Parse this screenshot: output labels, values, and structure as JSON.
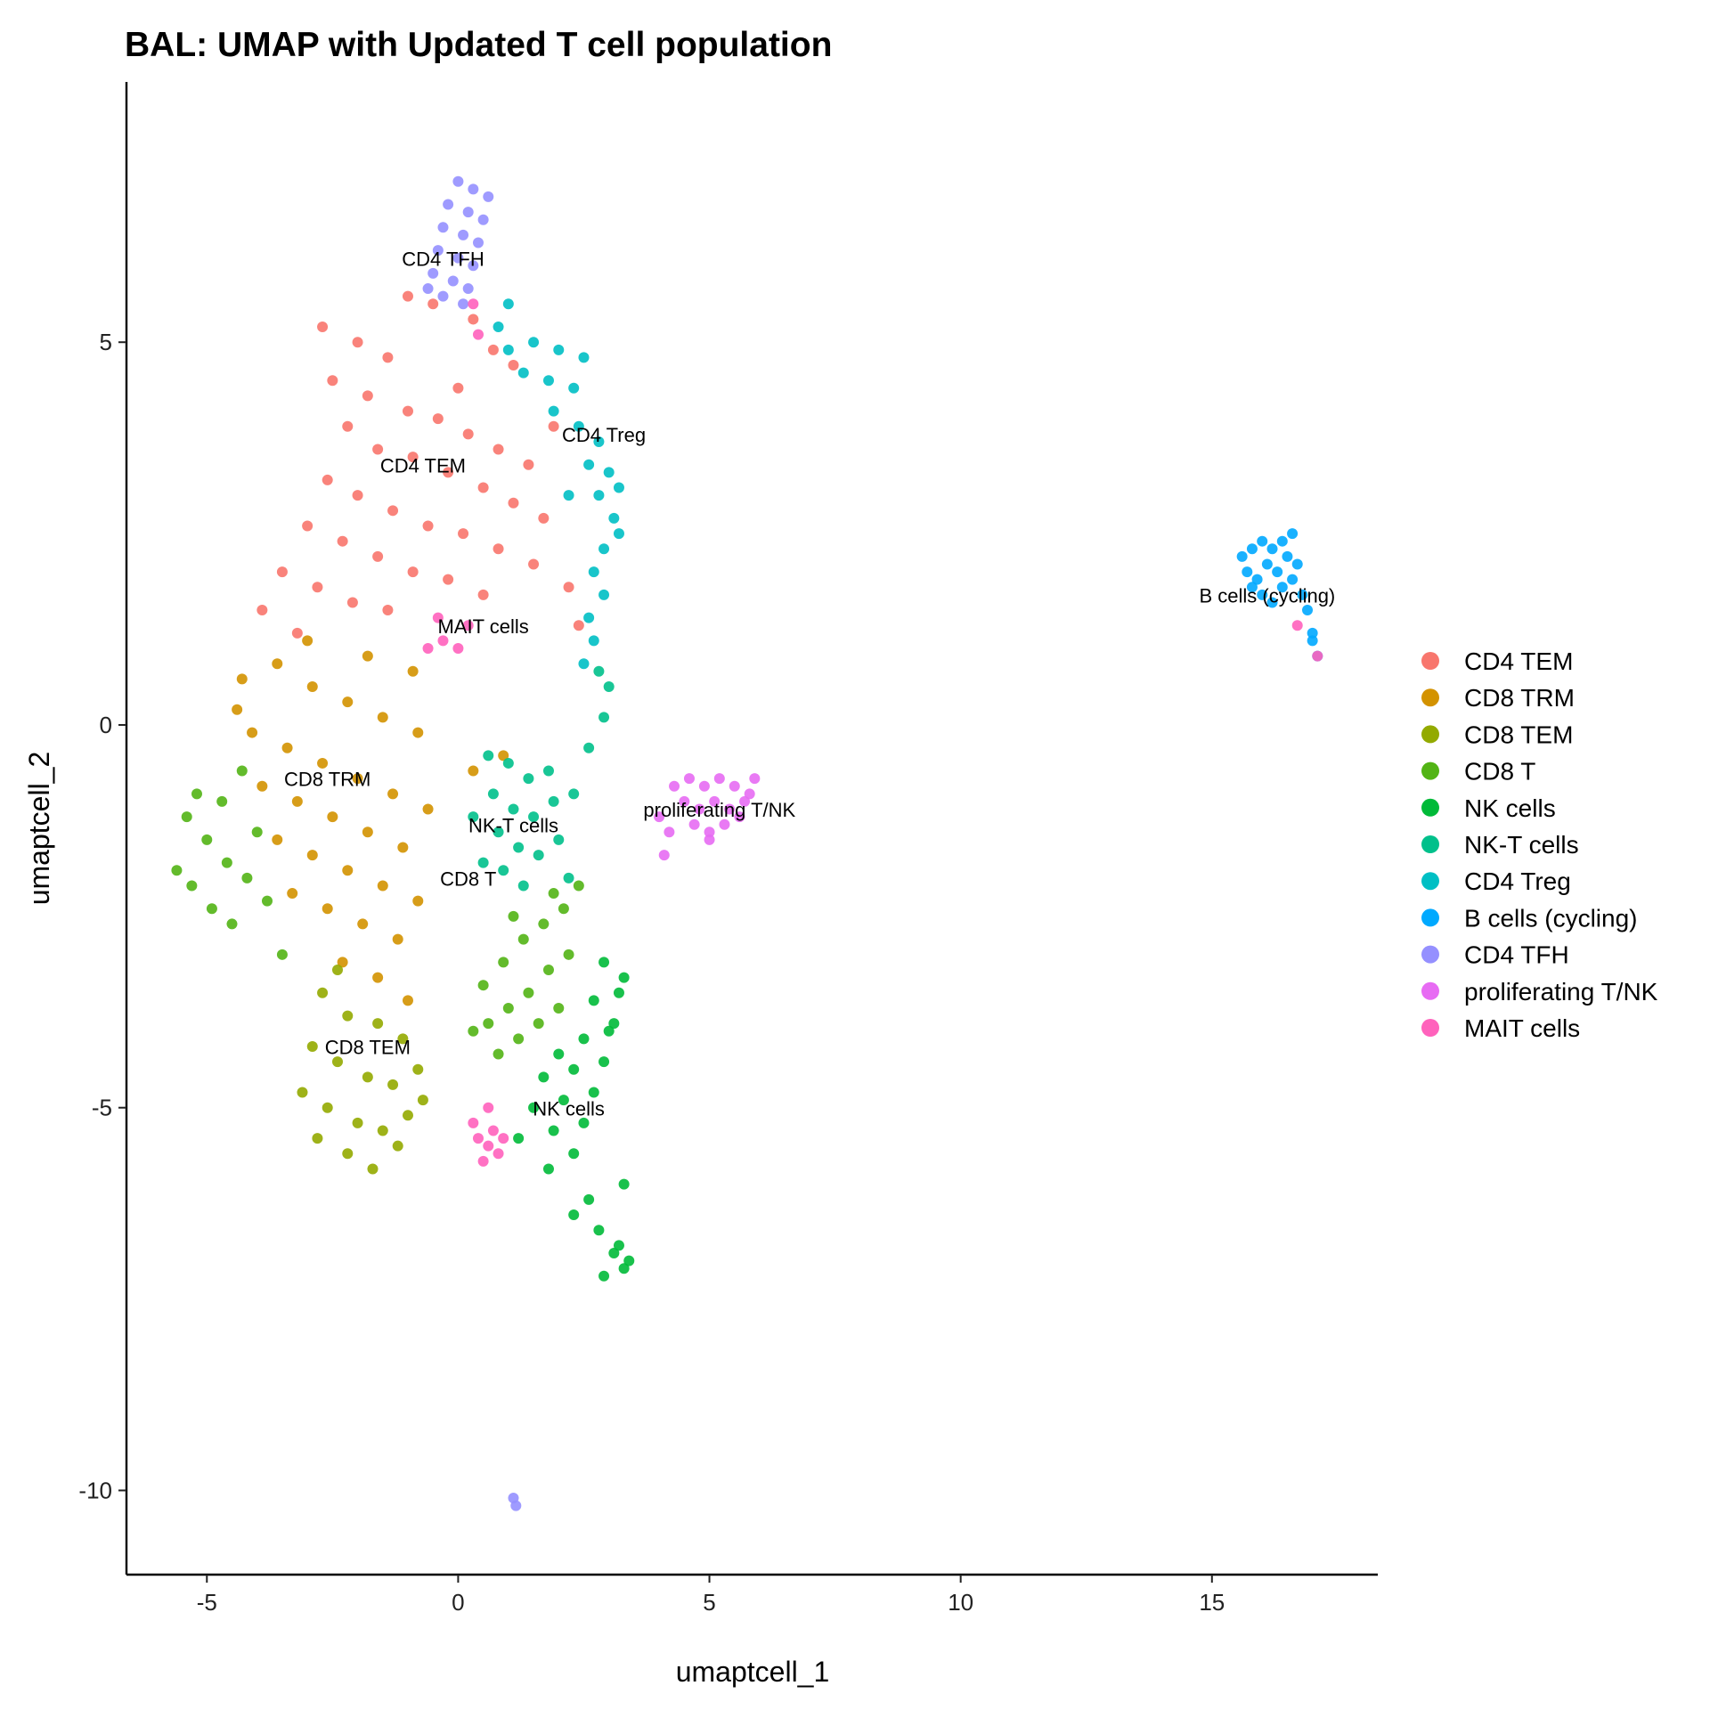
{
  "chart_data": {
    "type": "scatter",
    "title": "BAL: UMAP with Updated T cell population",
    "xlabel": "umaptcell_1",
    "ylabel": "umaptcell_2",
    "xlim": [
      -6.6,
      18.3
    ],
    "ylim": [
      -11.1,
      8.4
    ],
    "x_ticks": [
      -5,
      0,
      5,
      10,
      15
    ],
    "y_ticks": [
      -10,
      -5,
      0,
      5
    ],
    "grid": false,
    "legend_position": "right",
    "series": [
      {
        "name": "CD4 TEM",
        "color": "#F8766D",
        "label": "CD4 TEM",
        "label_pos": [
          -0.7,
          3.3
        ],
        "points": [
          [
            -2.7,
            5.2
          ],
          [
            -2.0,
            5.0
          ],
          [
            -1.4,
            4.8
          ],
          [
            -2.5,
            4.5
          ],
          [
            -1.8,
            4.3
          ],
          [
            -1.0,
            4.1
          ],
          [
            -0.4,
            4.0
          ],
          [
            0.2,
            3.8
          ],
          [
            0.8,
            3.6
          ],
          [
            1.4,
            3.4
          ],
          [
            -2.2,
            3.9
          ],
          [
            -1.6,
            3.6
          ],
          [
            -0.9,
            3.5
          ],
          [
            -0.2,
            3.3
          ],
          [
            0.5,
            3.1
          ],
          [
            1.1,
            2.9
          ],
          [
            1.7,
            2.7
          ],
          [
            -2.6,
            3.2
          ],
          [
            -2.0,
            3.0
          ],
          [
            -1.3,
            2.8
          ],
          [
            -0.6,
            2.6
          ],
          [
            0.1,
            2.5
          ],
          [
            0.8,
            2.3
          ],
          [
            1.5,
            2.1
          ],
          [
            -3.0,
            2.6
          ],
          [
            -2.3,
            2.4
          ],
          [
            -1.6,
            2.2
          ],
          [
            -0.9,
            2.0
          ],
          [
            -0.2,
            1.9
          ],
          [
            0.5,
            1.7
          ],
          [
            -3.5,
            2.0
          ],
          [
            -2.8,
            1.8
          ],
          [
            -2.1,
            1.6
          ],
          [
            -1.4,
            1.5
          ],
          [
            -3.9,
            1.5
          ],
          [
            -3.2,
            1.2
          ],
          [
            0.3,
            5.3
          ],
          [
            -0.5,
            5.5
          ],
          [
            1.1,
            4.7
          ],
          [
            1.9,
            3.9
          ],
          [
            2.2,
            1.8
          ],
          [
            2.4,
            1.3
          ],
          [
            -1.0,
            5.6
          ],
          [
            0.0,
            4.4
          ],
          [
            0.7,
            4.9
          ]
        ]
      },
      {
        "name": "CD8 TRM",
        "color": "#D39200",
        "label": "CD8 TRM",
        "label_pos": [
          -2.6,
          -0.8
        ],
        "points": [
          [
            -4.3,
            0.6
          ],
          [
            -3.6,
            0.8
          ],
          [
            -2.9,
            0.5
          ],
          [
            -2.2,
            0.3
          ],
          [
            -1.5,
            0.1
          ],
          [
            -0.8,
            -0.1
          ],
          [
            -4.1,
            -0.1
          ],
          [
            -3.4,
            -0.3
          ],
          [
            -2.7,
            -0.5
          ],
          [
            -2.0,
            -0.7
          ],
          [
            -1.3,
            -0.9
          ],
          [
            -0.6,
            -1.1
          ],
          [
            -3.9,
            -0.8
          ],
          [
            -3.2,
            -1.0
          ],
          [
            -2.5,
            -1.2
          ],
          [
            -1.8,
            -1.4
          ],
          [
            -1.1,
            -1.6
          ],
          [
            -3.6,
            -1.5
          ],
          [
            -2.9,
            -1.7
          ],
          [
            -2.2,
            -1.9
          ],
          [
            -1.5,
            -2.1
          ],
          [
            -0.8,
            -2.3
          ],
          [
            -3.3,
            -2.2
          ],
          [
            -2.6,
            -2.4
          ],
          [
            -1.9,
            -2.6
          ],
          [
            -1.2,
            -2.8
          ],
          [
            -2.3,
            -3.1
          ],
          [
            -1.6,
            -3.3
          ],
          [
            -1.0,
            -3.6
          ],
          [
            -4.4,
            0.2
          ],
          [
            -3.0,
            1.1
          ],
          [
            -1.8,
            0.9
          ],
          [
            -0.9,
            0.7
          ],
          [
            0.3,
            -0.6
          ],
          [
            0.9,
            -0.4
          ]
        ]
      },
      {
        "name": "CD8 TEM",
        "color": "#93AA00",
        "label": "CD8 TEM",
        "label_pos": [
          -1.8,
          -4.3
        ],
        "points": [
          [
            -2.7,
            -3.5
          ],
          [
            -2.2,
            -3.8
          ],
          [
            -1.6,
            -3.9
          ],
          [
            -1.1,
            -4.1
          ],
          [
            -2.9,
            -4.2
          ],
          [
            -2.4,
            -4.4
          ],
          [
            -1.8,
            -4.6
          ],
          [
            -1.3,
            -4.7
          ],
          [
            -0.8,
            -4.5
          ],
          [
            -3.1,
            -4.8
          ],
          [
            -2.6,
            -5.0
          ],
          [
            -2.0,
            -5.2
          ],
          [
            -1.5,
            -5.3
          ],
          [
            -1.0,
            -5.1
          ],
          [
            -2.8,
            -5.4
          ],
          [
            -2.2,
            -5.6
          ],
          [
            -1.7,
            -5.8
          ],
          [
            -1.2,
            -5.5
          ],
          [
            -0.7,
            -4.9
          ],
          [
            -2.4,
            -3.2
          ]
        ]
      },
      {
        "name": "CD8 T",
        "color": "#52B415",
        "label": "CD8 T",
        "label_pos": [
          0.2,
          -2.1
        ],
        "points": [
          [
            -5.4,
            -1.2
          ],
          [
            -5.0,
            -1.5
          ],
          [
            -4.6,
            -1.8
          ],
          [
            -4.2,
            -2.0
          ],
          [
            -5.3,
            -2.1
          ],
          [
            -4.9,
            -2.4
          ],
          [
            -4.5,
            -2.6
          ],
          [
            -5.2,
            -0.9
          ],
          [
            -4.7,
            -1.0
          ],
          [
            -4.0,
            -1.4
          ],
          [
            -3.8,
            -2.3
          ],
          [
            -4.3,
            -0.6
          ],
          [
            0.5,
            -3.4
          ],
          [
            0.9,
            -3.1
          ],
          [
            1.3,
            -2.8
          ],
          [
            1.7,
            -2.6
          ],
          [
            2.1,
            -2.4
          ],
          [
            0.6,
            -3.9
          ],
          [
            1.0,
            -3.7
          ],
          [
            1.4,
            -3.5
          ],
          [
            1.8,
            -3.2
          ],
          [
            2.2,
            -3.0
          ],
          [
            0.8,
            -4.3
          ],
          [
            1.2,
            -4.1
          ],
          [
            1.6,
            -3.9
          ],
          [
            2.0,
            -3.7
          ],
          [
            1.1,
            -2.5
          ],
          [
            1.9,
            -2.2
          ],
          [
            2.4,
            -2.1
          ],
          [
            0.3,
            -4.0
          ],
          [
            -5.6,
            -1.9
          ],
          [
            -3.5,
            -3.0
          ]
        ]
      },
      {
        "name": "NK cells",
        "color": "#00BA38",
        "label": "NK cells",
        "label_pos": [
          2.2,
          -5.1
        ],
        "points": [
          [
            2.9,
            -3.1
          ],
          [
            3.3,
            -3.3
          ],
          [
            2.7,
            -3.6
          ],
          [
            3.1,
            -3.9
          ],
          [
            2.5,
            -4.1
          ],
          [
            2.9,
            -4.4
          ],
          [
            2.3,
            -4.5
          ],
          [
            2.7,
            -4.8
          ],
          [
            2.1,
            -4.9
          ],
          [
            2.5,
            -5.2
          ],
          [
            1.9,
            -5.3
          ],
          [
            2.3,
            -5.6
          ],
          [
            1.5,
            -5.0
          ],
          [
            1.2,
            -5.4
          ],
          [
            1.8,
            -5.8
          ],
          [
            2.6,
            -6.2
          ],
          [
            2.8,
            -6.6
          ],
          [
            3.1,
            -6.9
          ],
          [
            3.3,
            -7.1
          ],
          [
            2.9,
            -7.2
          ],
          [
            3.2,
            -6.8
          ],
          [
            3.4,
            -7.0
          ],
          [
            2.3,
            -6.4
          ],
          [
            3.2,
            -3.5
          ],
          [
            3.0,
            -4.0
          ],
          [
            2.0,
            -4.3
          ],
          [
            1.7,
            -4.6
          ],
          [
            3.3,
            -6.0
          ]
        ]
      },
      {
        "name": "NK-T cells",
        "color": "#00C08B",
        "label": "NK-T cells",
        "label_pos": [
          1.1,
          -1.4
        ],
        "points": [
          [
            0.6,
            -0.4
          ],
          [
            1.0,
            -0.5
          ],
          [
            1.4,
            -0.7
          ],
          [
            1.8,
            -0.6
          ],
          [
            0.7,
            -0.9
          ],
          [
            1.1,
            -1.1
          ],
          [
            1.5,
            -1.2
          ],
          [
            1.9,
            -1.0
          ],
          [
            2.3,
            -0.9
          ],
          [
            0.8,
            -1.4
          ],
          [
            1.2,
            -1.6
          ],
          [
            1.6,
            -1.7
          ],
          [
            2.0,
            -1.5
          ],
          [
            0.9,
            -1.9
          ],
          [
            1.3,
            -2.1
          ],
          [
            2.6,
            -0.3
          ],
          [
            2.9,
            0.1
          ],
          [
            3.0,
            0.5
          ],
          [
            2.8,
            0.7
          ],
          [
            0.3,
            -1.2
          ],
          [
            2.2,
            -2.0
          ],
          [
            0.5,
            -1.8
          ]
        ]
      },
      {
        "name": "CD4 Treg",
        "color": "#00BFC4",
        "label": "CD4 Treg",
        "label_pos": [
          2.9,
          3.7
        ],
        "points": [
          [
            1.0,
            4.9
          ],
          [
            1.5,
            5.0
          ],
          [
            2.0,
            4.9
          ],
          [
            2.5,
            4.8
          ],
          [
            1.3,
            4.6
          ],
          [
            1.8,
            4.5
          ],
          [
            2.3,
            4.4
          ],
          [
            1.9,
            4.1
          ],
          [
            2.4,
            3.9
          ],
          [
            2.8,
            3.7
          ],
          [
            2.6,
            3.4
          ],
          [
            3.0,
            3.3
          ],
          [
            3.2,
            3.1
          ],
          [
            2.8,
            3.0
          ],
          [
            3.1,
            2.7
          ],
          [
            2.9,
            2.3
          ],
          [
            3.2,
            2.5
          ],
          [
            2.7,
            2.0
          ],
          [
            2.9,
            1.7
          ],
          [
            2.6,
            1.4
          ],
          [
            2.7,
            1.1
          ],
          [
            2.5,
            0.8
          ],
          [
            1.0,
            5.5
          ],
          [
            0.8,
            5.2
          ],
          [
            2.2,
            3.0
          ]
        ]
      },
      {
        "name": "B cells (cycling)",
        "color": "#00A9FF",
        "label": "B cells (cycling)",
        "label_pos": [
          16.1,
          1.6
        ],
        "points": [
          [
            15.6,
            2.2
          ],
          [
            15.8,
            2.3
          ],
          [
            16.0,
            2.4
          ],
          [
            16.2,
            2.3
          ],
          [
            16.4,
            2.4
          ],
          [
            16.6,
            2.5
          ],
          [
            15.7,
            2.0
          ],
          [
            15.9,
            1.9
          ],
          [
            16.1,
            2.1
          ],
          [
            16.3,
            2.0
          ],
          [
            16.5,
            2.2
          ],
          [
            16.7,
            2.1
          ],
          [
            15.8,
            1.8
          ],
          [
            16.0,
            1.7
          ],
          [
            16.4,
            1.8
          ],
          [
            16.6,
            1.9
          ],
          [
            16.8,
            1.7
          ],
          [
            16.9,
            1.5
          ],
          [
            17.0,
            1.1
          ],
          [
            17.1,
            0.9
          ],
          [
            17.0,
            1.2
          ],
          [
            16.2,
            1.6
          ]
        ]
      },
      {
        "name": "CD4 TFH",
        "color": "#9590FF",
        "label": "CD4 TFH",
        "label_pos": [
          -0.3,
          6.0
        ],
        "points": [
          [
            0.0,
            7.1
          ],
          [
            0.3,
            7.0
          ],
          [
            -0.2,
            6.8
          ],
          [
            0.2,
            6.7
          ],
          [
            0.5,
            6.6
          ],
          [
            -0.3,
            6.5
          ],
          [
            0.1,
            6.4
          ],
          [
            0.4,
            6.3
          ],
          [
            -0.4,
            6.2
          ],
          [
            0.0,
            6.1
          ],
          [
            0.3,
            6.0
          ],
          [
            -0.5,
            5.9
          ],
          [
            -0.1,
            5.8
          ],
          [
            0.2,
            5.7
          ],
          [
            -0.3,
            5.6
          ],
          [
            0.1,
            5.5
          ],
          [
            -0.6,
            5.7
          ],
          [
            0.6,
            6.9
          ],
          [
            1.1,
            -10.1
          ],
          [
            1.15,
            -10.2
          ]
        ]
      },
      {
        "name": "proliferating T/NK",
        "color": "#E76BF3",
        "label": "proliferating T/NK",
        "label_pos": [
          5.2,
          -1.2
        ],
        "points": [
          [
            4.3,
            -0.8
          ],
          [
            4.6,
            -0.7
          ],
          [
            4.9,
            -0.8
          ],
          [
            5.2,
            -0.7
          ],
          [
            5.5,
            -0.8
          ],
          [
            5.8,
            -0.9
          ],
          [
            4.5,
            -1.0
          ],
          [
            4.8,
            -1.1
          ],
          [
            5.1,
            -1.0
          ],
          [
            5.4,
            -1.1
          ],
          [
            5.7,
            -1.0
          ],
          [
            4.7,
            -1.3
          ],
          [
            5.0,
            -1.4
          ],
          [
            5.3,
            -1.3
          ],
          [
            5.6,
            -1.2
          ],
          [
            4.2,
            -1.4
          ],
          [
            4.0,
            -1.2
          ],
          [
            5.0,
            -1.5
          ],
          [
            5.9,
            -0.7
          ],
          [
            4.1,
            -1.7
          ]
        ]
      },
      {
        "name": "MAIT cells",
        "color": "#FF62BC",
        "label": "MAIT cells",
        "label_pos": [
          0.5,
          1.2
        ],
        "points": [
          [
            0.3,
            5.5
          ],
          [
            -0.6,
            1.0
          ],
          [
            -0.3,
            1.1
          ],
          [
            0.0,
            1.0
          ],
          [
            0.2,
            1.3
          ],
          [
            -0.4,
            1.4
          ],
          [
            0.4,
            5.1
          ],
          [
            0.4,
            -5.4
          ],
          [
            0.6,
            -5.5
          ],
          [
            0.8,
            -5.6
          ],
          [
            0.5,
            -5.7
          ],
          [
            0.7,
            -5.3
          ],
          [
            0.3,
            -5.2
          ],
          [
            0.9,
            -5.4
          ],
          [
            0.6,
            -5.0
          ],
          [
            17.1,
            0.9
          ],
          [
            16.7,
            1.3
          ]
        ]
      }
    ]
  }
}
